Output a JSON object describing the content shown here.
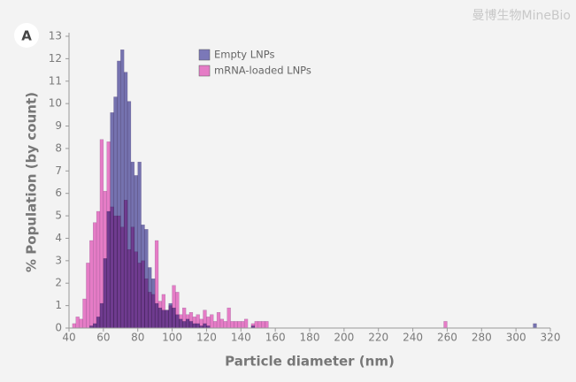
{
  "panel_label": "A",
  "watermark": "曼博生物MineBio",
  "chart_data": {
    "type": "histogram",
    "xlabel": "Particle diameter (nm)",
    "ylabel": "% Population (by count)",
    "xlim": [
      40,
      320
    ],
    "ylim": [
      0,
      13
    ],
    "xticks": [
      40,
      60,
      80,
      100,
      120,
      140,
      160,
      180,
      200,
      220,
      240,
      260,
      280,
      300,
      320
    ],
    "yticks": [
      0,
      1,
      2,
      3,
      4,
      5,
      6,
      7,
      8,
      9,
      10,
      11,
      12,
      13
    ],
    "legend": "top-left",
    "bins": [
      42,
      44,
      46,
      48,
      50,
      52,
      54,
      56,
      58,
      60,
      62,
      64,
      66,
      68,
      70,
      72,
      74,
      76,
      78,
      80,
      82,
      84,
      86,
      88,
      90,
      92,
      94,
      96,
      98,
      100,
      102,
      104,
      106,
      108,
      110,
      112,
      114,
      116,
      118,
      120,
      122,
      124,
      126,
      128,
      130,
      132,
      134,
      136,
      138,
      140,
      142,
      144,
      146,
      148,
      150,
      152,
      154,
      156,
      158,
      160,
      162,
      164,
      166,
      168,
      170,
      172,
      174,
      176,
      178,
      180,
      182,
      184,
      186,
      188,
      190,
      192,
      194,
      196,
      198,
      200,
      202,
      204,
      206,
      208,
      210,
      212,
      214,
      216,
      218,
      220,
      222,
      224,
      226,
      228,
      230,
      232,
      234,
      236,
      238,
      240,
      242,
      244,
      246,
      248,
      250,
      252,
      254,
      256,
      258,
      260,
      262,
      264,
      266,
      268,
      270,
      272,
      274,
      276,
      278,
      280,
      282,
      284,
      286,
      288,
      290,
      292,
      294,
      296,
      298,
      300,
      302,
      304,
      306,
      308,
      310,
      312
    ],
    "series": [
      {
        "name": "mRNA-loaded LNPs",
        "color": "#e57cc6",
        "values": [
          0.2,
          0.5,
          0.4,
          1.3,
          2.9,
          3.9,
          4.7,
          5.2,
          8.4,
          6.1,
          8.3,
          5.4,
          5.0,
          5.0,
          4.5,
          5.7,
          3.5,
          4.5,
          3.4,
          2.9,
          3.0,
          2.2,
          1.6,
          1.5,
          3.9,
          1.2,
          1.5,
          0.8,
          1.0,
          1.9,
          1.6,
          0.6,
          0.9,
          0.6,
          0.7,
          0.5,
          0.6,
          0.4,
          0.8,
          0.5,
          0.6,
          0.3,
          0.7,
          0.4,
          0.3,
          0.9,
          0.3,
          0.3,
          0.3,
          0.3,
          0.4,
          0,
          0.2,
          0.3,
          0.3,
          0.3,
          0.3,
          0,
          0,
          0,
          0,
          0,
          0,
          0,
          0,
          0,
          0,
          0,
          0,
          0,
          0,
          0,
          0,
          0,
          0,
          0,
          0,
          0,
          0,
          0,
          0,
          0,
          0,
          0,
          0,
          0,
          0,
          0,
          0,
          0,
          0,
          0,
          0,
          0,
          0,
          0,
          0,
          0,
          0,
          0,
          0,
          0,
          0,
          0,
          0,
          0,
          0,
          0,
          0.3,
          0,
          0,
          0,
          0,
          0,
          0,
          0,
          0,
          0,
          0,
          0,
          0,
          0,
          0,
          0,
          0,
          0,
          0,
          0,
          0,
          0,
          0,
          0,
          0,
          0,
          0
        ]
      },
      {
        "name": "Empty LNPs",
        "color": "#7b78b8",
        "values": [
          0,
          0,
          0,
          0,
          0,
          0.1,
          0.2,
          0.5,
          1.1,
          3.1,
          5.2,
          9.6,
          10.3,
          11.9,
          12.4,
          11.4,
          10.1,
          7.4,
          6.8,
          7.4,
          4.6,
          4.4,
          2.7,
          2.2,
          1.1,
          0.9,
          0.8,
          0.8,
          1.1,
          0.9,
          0.6,
          0.4,
          0.3,
          0.4,
          0.3,
          0.2,
          0.2,
          0.1,
          0.2,
          0.1,
          0,
          0,
          0,
          0,
          0,
          0,
          0,
          0,
          0,
          0,
          0,
          0,
          0.1,
          0,
          0,
          0,
          0,
          0,
          0,
          0,
          0,
          0,
          0,
          0,
          0,
          0,
          0,
          0,
          0,
          0,
          0,
          0,
          0,
          0,
          0,
          0,
          0,
          0,
          0,
          0,
          0,
          0,
          0,
          0,
          0,
          0,
          0,
          0,
          0,
          0,
          0,
          0,
          0,
          0,
          0,
          0,
          0,
          0,
          0,
          0,
          0,
          0,
          0,
          0,
          0,
          0,
          0,
          0,
          0,
          0,
          0,
          0,
          0,
          0,
          0,
          0,
          0,
          0,
          0,
          0,
          0,
          0,
          0,
          0,
          0,
          0,
          0,
          0,
          0,
          0,
          0,
          0,
          0,
          0,
          0.2
        ]
      }
    ]
  }
}
